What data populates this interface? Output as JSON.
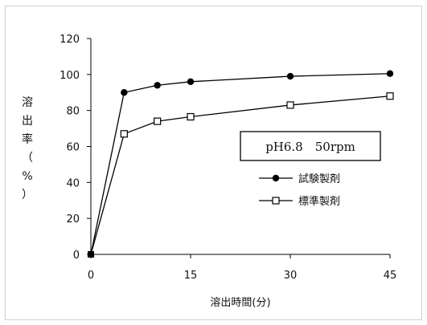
{
  "chart_data": {
    "type": "line",
    "title": "",
    "xlabel": "溶出時間(分)",
    "ylabel": "溶出率（%）",
    "ylabel_chars": [
      "溶",
      "出",
      "率",
      "（",
      "%",
      "）"
    ],
    "condition_label": "pH6.8　50rpm",
    "x": [
      0,
      5,
      10,
      15,
      30,
      45
    ],
    "xticks": [
      0,
      15,
      30,
      45
    ],
    "yticks": [
      0,
      20,
      40,
      60,
      80,
      100,
      120
    ],
    "xlim": [
      0,
      45
    ],
    "ylim": [
      0,
      120
    ],
    "grid": false,
    "legend_position": "center-right",
    "series": [
      {
        "name": "試験製剤",
        "marker": "filled-circle",
        "color": "#000000",
        "values": [
          0,
          90,
          94,
          96,
          99,
          100.5
        ]
      },
      {
        "name": "標準製剤",
        "marker": "open-square",
        "color": "#000000",
        "values": [
          0,
          67,
          74,
          76.5,
          83,
          88
        ]
      }
    ]
  }
}
